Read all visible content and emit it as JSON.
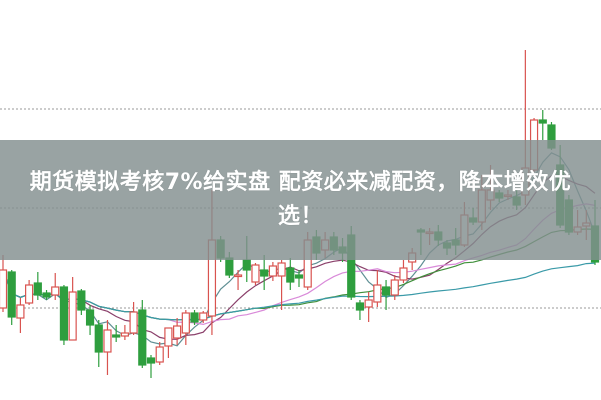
{
  "title": "期货模拟考核7%给实盘 配资必来减配资，降本增效优选！",
  "colors": {
    "up": "#d9534f",
    "down": "#2e9e3e",
    "banner": "#8a9595"
  },
  "chart_data": {
    "type": "candlestick",
    "title": "",
    "xlabel": "",
    "ylabel": "",
    "ylim": [
      0,
      400
    ],
    "grid": "dotted horizontal",
    "gridlines": [
      92,
      192,
      291
    ],
    "candles": [
      [
        92,
        145,
        88,
        130
      ],
      [
        128,
        130,
        75,
        83
      ],
      [
        82,
        102,
        67,
        95
      ],
      [
        97,
        120,
        95,
        115
      ],
      [
        117,
        128,
        100,
        105
      ],
      [
        107,
        110,
        100,
        103
      ],
      [
        105,
        127,
        100,
        113
      ],
      [
        113,
        115,
        55,
        60
      ],
      [
        60,
        123,
        60,
        108
      ],
      [
        109,
        111,
        85,
        90
      ],
      [
        90,
        95,
        65,
        75
      ],
      [
        75,
        80,
        33,
        48
      ],
      [
        48,
        80,
        25,
        70
      ],
      [
        65,
        75,
        58,
        63
      ],
      [
        64,
        75,
        60,
        67
      ],
      [
        67,
        98,
        65,
        88
      ],
      [
        90,
        100,
        32,
        35
      ],
      [
        42,
        45,
        22,
        37
      ],
      [
        38,
        58,
        35,
        53
      ],
      [
        54,
        72,
        42,
        72
      ],
      [
        62,
        82,
        55,
        74
      ],
      [
        67,
        90,
        55,
        87
      ],
      [
        87,
        90,
        75,
        78
      ],
      [
        80,
        89,
        77,
        87
      ],
      [
        84,
        210,
        65,
        160
      ],
      [
        160,
        164,
        138,
        142
      ],
      [
        142,
        148,
        122,
        125
      ],
      [
        124,
        130,
        110,
        125
      ],
      [
        140,
        164,
        118,
        130
      ],
      [
        118,
        137,
        115,
        135
      ],
      [
        130,
        145,
        110,
        124
      ],
      [
        124,
        138,
        119,
        134
      ],
      [
        124,
        140,
        90,
        137
      ],
      [
        132,
        142,
        110,
        118
      ],
      [
        125,
        130,
        113,
        122
      ],
      [
        113,
        168,
        110,
        160
      ],
      [
        163,
        170,
        140,
        147
      ],
      [
        150,
        168,
        142,
        160
      ],
      [
        163,
        168,
        145,
        150
      ],
      [
        153,
        162,
        138,
        147
      ],
      [
        165,
        174,
        100,
        103
      ],
      [
        97,
        100,
        80,
        90
      ],
      [
        93,
        108,
        78,
        100
      ],
      [
        98,
        130,
        93,
        115
      ],
      [
        113,
        120,
        90,
        105
      ],
      [
        105,
        125,
        100,
        120
      ],
      [
        120,
        140,
        117,
        132
      ],
      [
        138,
        152,
        130,
        147
      ],
      [
        170,
        172,
        145,
        168
      ],
      [
        167,
        172,
        155,
        168
      ],
      [
        168,
        175,
        154,
        160
      ],
      [
        157,
        160,
        145,
        152
      ],
      [
        160,
        172,
        145,
        155
      ],
      [
        155,
        198,
        153,
        185
      ],
      [
        182,
        192,
        175,
        178
      ],
      [
        178,
        225,
        170,
        210
      ],
      [
        200,
        235,
        190,
        210
      ],
      [
        207,
        210,
        198,
        202
      ],
      [
        204,
        210,
        200,
        205
      ],
      [
        203,
        210,
        190,
        195
      ],
      [
        205,
        350,
        195,
        232
      ],
      [
        230,
        282,
        228,
        280
      ],
      [
        280,
        290,
        260,
        277
      ],
      [
        275,
        278,
        250,
        252
      ],
      [
        235,
        255,
        172,
        175
      ],
      [
        200,
        205,
        165,
        168
      ],
      [
        168,
        190,
        165,
        173
      ],
      [
        174,
        190,
        160,
        177
      ],
      [
        174,
        200,
        135,
        138
      ]
    ],
    "moving_averages": [
      {
        "period": 5,
        "color": "#5f8f94"
      },
      {
        "period": 10,
        "color": "#8a3f6a"
      },
      {
        "period": 20,
        "color": "#d98ad9"
      },
      {
        "period": 30,
        "color": "#3f8f3a"
      },
      {
        "period": 60,
        "color": "#3a9aa8"
      }
    ]
  }
}
